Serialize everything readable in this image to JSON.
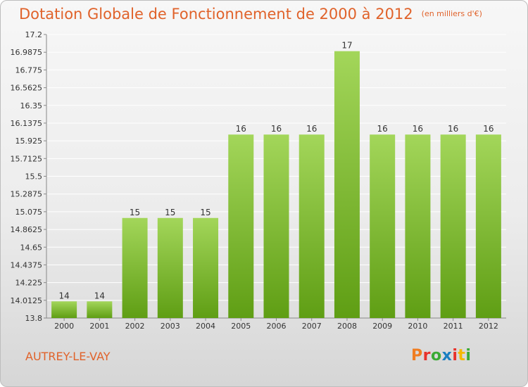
{
  "header": {
    "title": "Dotation Globale de Fonctionnement de 2000 à 2012",
    "unit": "(en milliers d'€)"
  },
  "footer": {
    "commune": "AUTREY-LE-VAY",
    "logo": "Proxiti"
  },
  "colors": {
    "bar_light": "#a3d65a",
    "bar_dark": "#5f9e14",
    "title": "#e0622a",
    "logo": [
      "#f07d21",
      "#e8322c",
      "#3aaa35",
      "#1a7fc1",
      "#e8322c",
      "#f5b800",
      "#3aaa35"
    ]
  },
  "chart_data": {
    "type": "bar",
    "title": "Dotation Globale de Fonctionnement de 2000 à 2012",
    "categories": [
      "2000",
      "2001",
      "2002",
      "2003",
      "2004",
      "2005",
      "2006",
      "2007",
      "2008",
      "2009",
      "2010",
      "2011",
      "2012"
    ],
    "values": [
      14,
      14,
      15,
      15,
      15,
      16,
      16,
      16,
      17,
      16,
      16,
      16,
      16
    ],
    "plotted_values": [
      14.0,
      14.0,
      15.0,
      15.0,
      15.0,
      16.0,
      16.0,
      16.0,
      17.0,
      16.0,
      16.0,
      16.0,
      16.0
    ],
    "ylim": [
      13.8,
      17.2
    ],
    "yticks": [
      "13.8",
      "14.0125",
      "14.225",
      "14.4375",
      "14.65",
      "14.8625",
      "15.075",
      "15.2875",
      "15.5",
      "15.7125",
      "15.925",
      "16.1375",
      "16.35",
      "16.5625",
      "16.775",
      "16.9875",
      "17.2"
    ],
    "grid": true,
    "legend": "none"
  }
}
